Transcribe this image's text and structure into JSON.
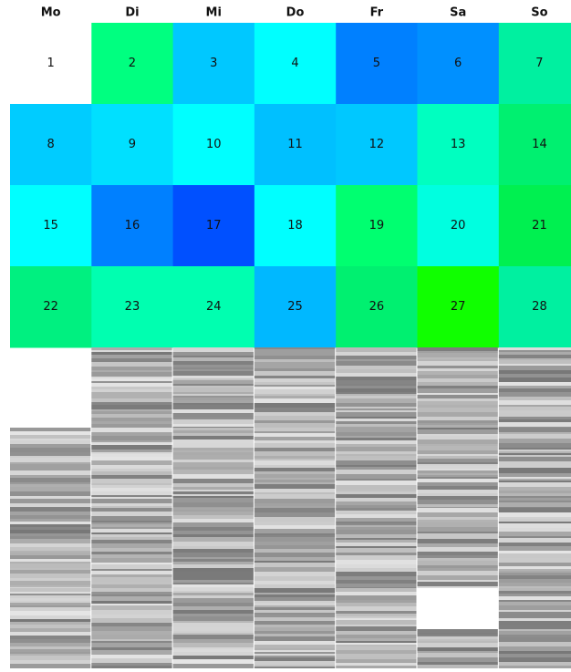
{
  "header": {
    "days": [
      "Mo",
      "Di",
      "Mi",
      "Do",
      "Fr",
      "Sa",
      "So"
    ]
  },
  "cells": [
    {
      "label": "1",
      "color": "#ffffff"
    },
    {
      "label": "2",
      "color": "#00ff80"
    },
    {
      "label": "3",
      "color": "#00c8ff"
    },
    {
      "label": "4",
      "color": "#00ffff"
    },
    {
      "label": "5",
      "color": "#0080ff"
    },
    {
      "label": "6",
      "color": "#0090ff"
    },
    {
      "label": "7",
      "color": "#00f0a0"
    },
    {
      "label": "8",
      "color": "#00ccff"
    },
    {
      "label": "9",
      "color": "#00e0ff"
    },
    {
      "label": "10",
      "color": "#00ffff"
    },
    {
      "label": "11",
      "color": "#00c0ff"
    },
    {
      "label": "12",
      "color": "#00c8ff"
    },
    {
      "label": "13",
      "color": "#00ffc0"
    },
    {
      "label": "14",
      "color": "#00f070"
    },
    {
      "label": "15",
      "color": "#00ffff"
    },
    {
      "label": "16",
      "color": "#0080ff"
    },
    {
      "label": "17",
      "color": "#0050ff"
    },
    {
      "label": "18",
      "color": "#00ffff"
    },
    {
      "label": "19",
      "color": "#00ff70"
    },
    {
      "label": "20",
      "color": "#00ffe0"
    },
    {
      "label": "21",
      "color": "#00f050"
    },
    {
      "label": "22",
      "color": "#00f080"
    },
    {
      "label": "23",
      "color": "#00ffb0"
    },
    {
      "label": "24",
      "color": "#00ffb0"
    },
    {
      "label": "25",
      "color": "#00b8ff"
    },
    {
      "label": "26",
      "color": "#00f070"
    },
    {
      "label": "27",
      "color": "#10ff00"
    },
    {
      "label": "28",
      "color": "#00f0a0"
    }
  ]
}
